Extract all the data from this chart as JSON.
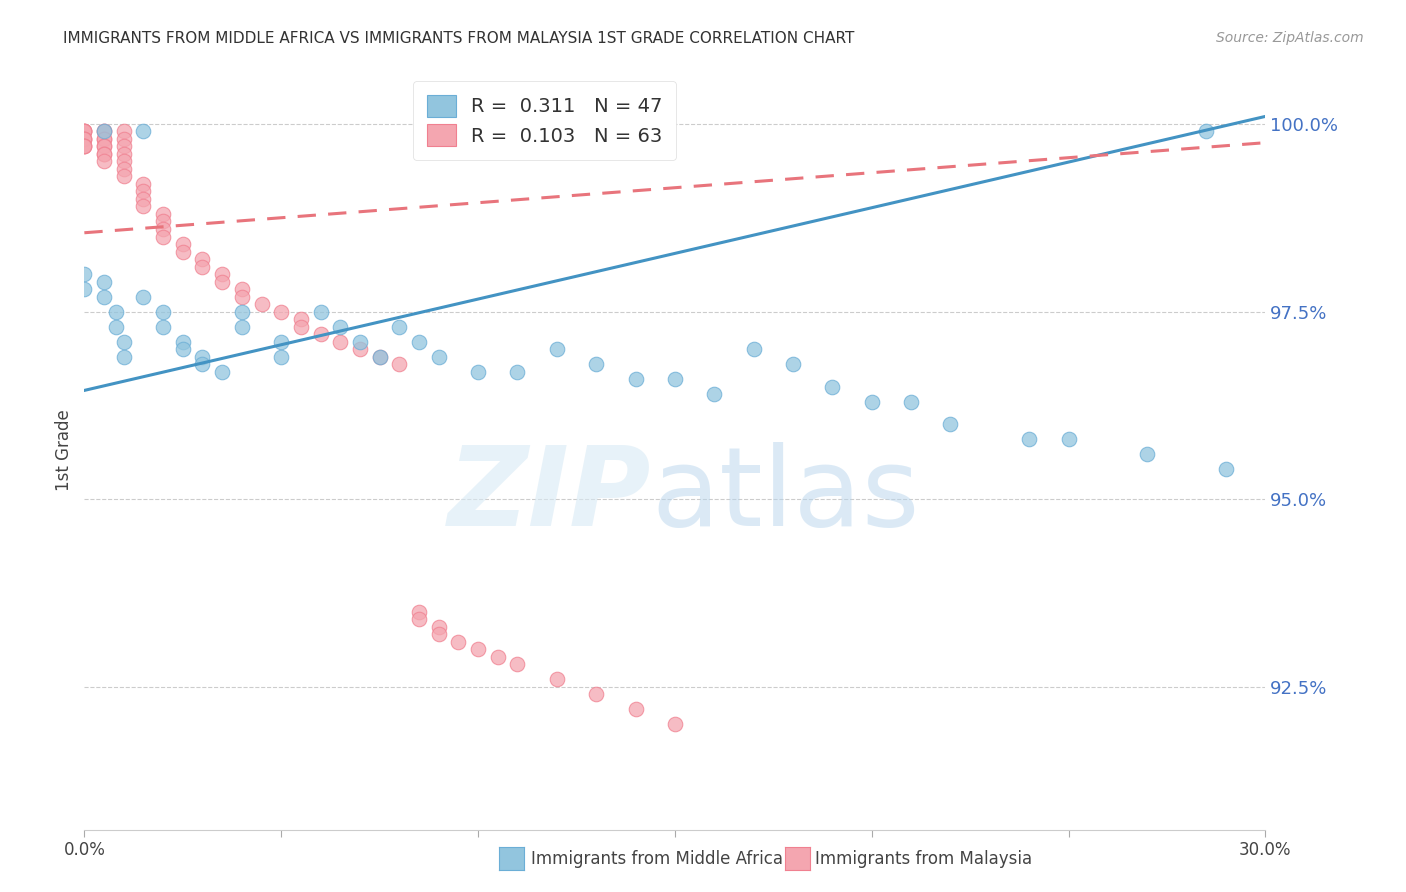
{
  "title": "IMMIGRANTS FROM MIDDLE AFRICA VS IMMIGRANTS FROM MALAYSIA 1ST GRADE CORRELATION CHART",
  "source": "Source: ZipAtlas.com",
  "ylabel": "1st Grade",
  "xaxis_range": [
    0.0,
    0.3
  ],
  "yaxis_range": [
    0.906,
    1.007
  ],
  "legend_blue_r": "0.311",
  "legend_blue_n": "47",
  "legend_pink_r": "0.103",
  "legend_pink_n": "63",
  "blue_color": "#92c5de",
  "pink_color": "#f4a6b0",
  "blue_fill_color": "#92c5de",
  "pink_fill_color": "#f4a6b0",
  "blue_edge_color": "#6baed6",
  "pink_edge_color": "#f08090",
  "blue_line_color": "#4393c3",
  "pink_line_color": "#e8747c",
  "grid_color": "#cccccc",
  "ytick_color": "#4472c4",
  "title_color": "#333333",
  "source_color": "#999999",
  "blue_scatter_x": [
    0.0,
    0.0,
    0.005,
    0.005,
    0.005,
    0.008,
    0.008,
    0.01,
    0.01,
    0.015,
    0.015,
    0.02,
    0.02,
    0.025,
    0.025,
    0.03,
    0.03,
    0.035,
    0.04,
    0.04,
    0.05,
    0.05,
    0.06,
    0.065,
    0.07,
    0.075,
    0.08,
    0.085,
    0.09,
    0.1,
    0.11,
    0.12,
    0.13,
    0.14,
    0.15,
    0.16,
    0.17,
    0.18,
    0.19,
    0.2,
    0.21,
    0.22,
    0.24,
    0.25,
    0.27,
    0.285,
    0.29
  ],
  "blue_scatter_y": [
    0.98,
    0.978,
    0.999,
    0.979,
    0.977,
    0.975,
    0.973,
    0.971,
    0.969,
    0.999,
    0.977,
    0.975,
    0.973,
    0.971,
    0.97,
    0.969,
    0.968,
    0.967,
    0.975,
    0.973,
    0.971,
    0.969,
    0.975,
    0.973,
    0.971,
    0.969,
    0.973,
    0.971,
    0.969,
    0.967,
    0.967,
    0.97,
    0.968,
    0.966,
    0.966,
    0.964,
    0.97,
    0.968,
    0.965,
    0.963,
    0.963,
    0.96,
    0.958,
    0.958,
    0.956,
    0.999,
    0.954
  ],
  "pink_scatter_x": [
    0.0,
    0.0,
    0.0,
    0.0,
    0.0,
    0.0,
    0.0,
    0.0,
    0.0,
    0.0,
    0.005,
    0.005,
    0.005,
    0.005,
    0.005,
    0.005,
    0.005,
    0.005,
    0.005,
    0.01,
    0.01,
    0.01,
    0.01,
    0.01,
    0.01,
    0.01,
    0.015,
    0.015,
    0.015,
    0.015,
    0.02,
    0.02,
    0.02,
    0.02,
    0.025,
    0.025,
    0.03,
    0.03,
    0.035,
    0.035,
    0.04,
    0.04,
    0.045,
    0.05,
    0.055,
    0.055,
    0.06,
    0.065,
    0.07,
    0.075,
    0.08,
    0.085,
    0.085,
    0.09,
    0.09,
    0.095,
    0.1,
    0.105,
    0.11,
    0.12,
    0.13,
    0.14,
    0.15
  ],
  "pink_scatter_y": [
    0.999,
    0.999,
    0.999,
    0.999,
    0.998,
    0.998,
    0.998,
    0.997,
    0.997,
    0.997,
    0.999,
    0.999,
    0.998,
    0.998,
    0.997,
    0.997,
    0.996,
    0.996,
    0.995,
    0.999,
    0.998,
    0.997,
    0.996,
    0.995,
    0.994,
    0.993,
    0.992,
    0.991,
    0.99,
    0.989,
    0.988,
    0.987,
    0.986,
    0.985,
    0.984,
    0.983,
    0.982,
    0.981,
    0.98,
    0.979,
    0.978,
    0.977,
    0.976,
    0.975,
    0.974,
    0.973,
    0.972,
    0.971,
    0.97,
    0.969,
    0.968,
    0.935,
    0.934,
    0.933,
    0.932,
    0.931,
    0.93,
    0.929,
    0.928,
    0.926,
    0.924,
    0.922,
    0.92
  ],
  "blue_line_x0": 0.0,
  "blue_line_y0": 0.9645,
  "blue_line_x1": 0.3,
  "blue_line_y1": 1.001,
  "pink_line_x0": 0.0,
  "pink_line_y0": 0.9855,
  "pink_line_x1": 0.3,
  "pink_line_y1": 0.9975,
  "yticks": [
    0.925,
    0.95,
    0.975,
    1.0
  ],
  "ytick_labels": [
    "92.5%",
    "95.0%",
    "97.5%",
    "100.0%"
  ],
  "xticks": [
    0.0,
    0.05,
    0.1,
    0.15,
    0.2,
    0.25,
    0.3
  ],
  "xtick_labels_show": [
    "0.0%",
    "",
    "",
    "",
    "",
    "",
    "30.0%"
  ]
}
